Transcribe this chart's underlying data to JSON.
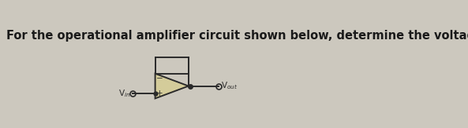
{
  "title_text": "For the operational amplifier circuit shown below, determine the voltage gain.",
  "title_fontsize": 10.5,
  "bg_color": "#ccc8be",
  "text_color": "#1a1a1a",
  "vin_label": "V$_{in}$",
  "vout_label": "V$_{out}$",
  "tri_face": "#d4cc9a",
  "tri_edge": "#2a2a2a",
  "line_color": "#2a2a2a"
}
